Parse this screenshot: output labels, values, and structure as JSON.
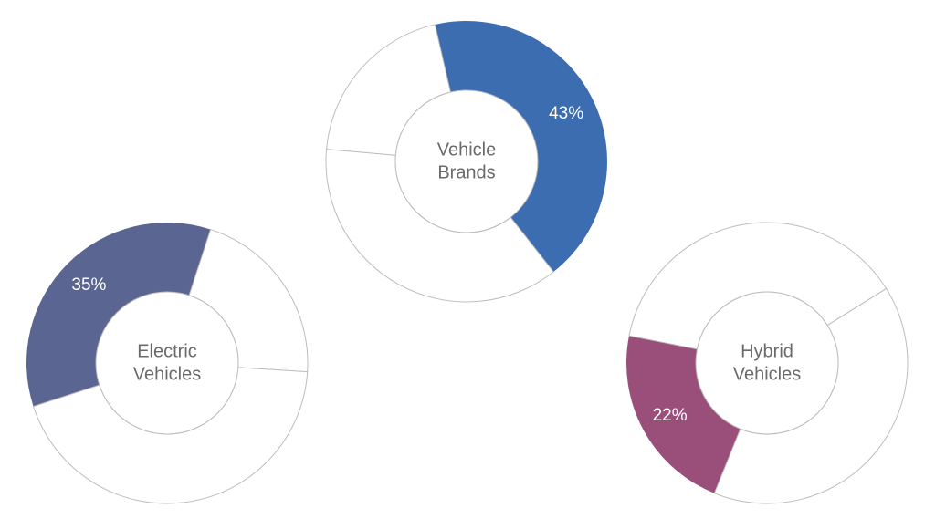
{
  "chart_data": [
    {
      "type": "pie",
      "title": "Vehicle Brands",
      "center_lines": [
        "Vehicle",
        "Brands"
      ],
      "slices": [
        {
          "value": 43,
          "label": "43%",
          "color": "#3b6db0",
          "highlighted": true
        },
        {
          "value": 37,
          "label": "",
          "color": "#ffffff",
          "highlighted": false
        },
        {
          "value": 20,
          "label": "",
          "color": "#ffffff",
          "highlighted": false
        }
      ]
    },
    {
      "type": "pie",
      "title": "Electric Vehicles",
      "center_lines": [
        "Electric",
        "Vehicles"
      ],
      "slices": [
        {
          "value": 35,
          "label": "35%",
          "color": "#5a6691",
          "highlighted": true
        },
        {
          "value": 21,
          "label": "",
          "color": "#ffffff",
          "highlighted": false
        },
        {
          "value": 44,
          "label": "",
          "color": "#ffffff",
          "highlighted": false
        }
      ]
    },
    {
      "type": "pie",
      "title": "Hybrid Vehicles",
      "center_lines": [
        "Hybrid",
        "Vehicles"
      ],
      "slices": [
        {
          "value": 22,
          "label": "22%",
          "color": "#9a4f7b",
          "highlighted": true
        },
        {
          "value": 38,
          "label": "",
          "color": "#ffffff",
          "highlighted": false
        },
        {
          "value": 40,
          "label": "",
          "color": "#ffffff",
          "highlighted": false
        }
      ]
    }
  ]
}
